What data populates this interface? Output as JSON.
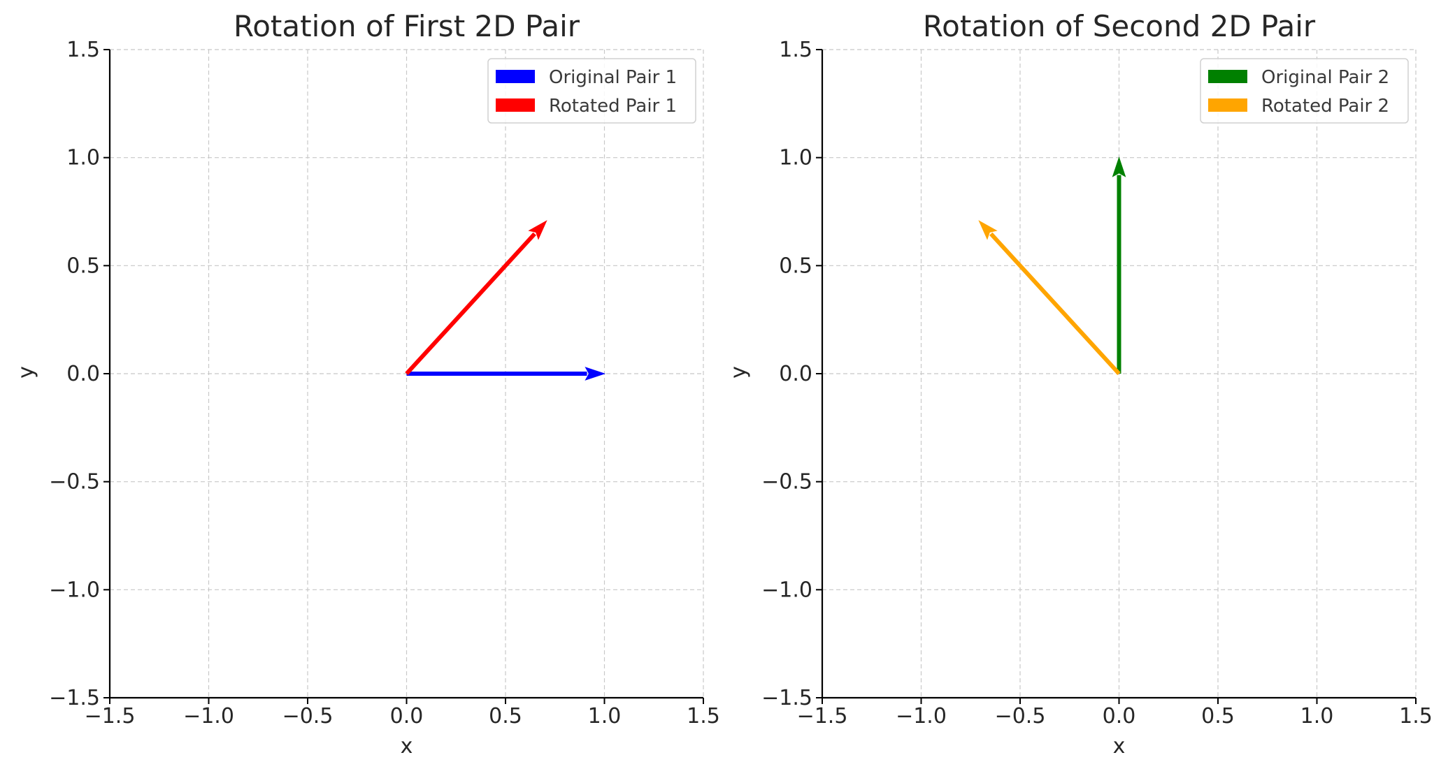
{
  "chart_data": [
    {
      "type": "quiver",
      "title": "Rotation of First 2D Pair",
      "xlabel": "x",
      "ylabel": "y",
      "xlim": [
        -1.5,
        1.5
      ],
      "ylim": [
        -1.5,
        1.5
      ],
      "xticks": [
        "−1.5",
        "−1.0",
        "−0.5",
        "0.0",
        "0.5",
        "1.0",
        "1.5"
      ],
      "yticks": [
        "−1.5",
        "−1.0",
        "−0.5",
        "0.0",
        "0.5",
        "1.0",
        "1.5"
      ],
      "grid": true,
      "legend_position": "top-right",
      "series": [
        {
          "name": "Original Pair 1",
          "color": "#0000ff",
          "start": [
            0,
            0
          ],
          "vector": [
            1.0,
            0.0
          ]
        },
        {
          "name": "Rotated Pair 1",
          "color": "#ff0000",
          "start": [
            0,
            0
          ],
          "vector": [
            0.707,
            0.707
          ]
        }
      ]
    },
    {
      "type": "quiver",
      "title": "Rotation of Second 2D Pair",
      "xlabel": "x",
      "ylabel": "y",
      "xlim": [
        -1.5,
        1.5
      ],
      "ylim": [
        -1.5,
        1.5
      ],
      "xticks": [
        "−1.5",
        "−1.0",
        "−0.5",
        "0.0",
        "0.5",
        "1.0",
        "1.5"
      ],
      "yticks": [
        "−1.5",
        "−1.0",
        "−0.5",
        "0.0",
        "0.5",
        "1.0",
        "1.5"
      ],
      "grid": true,
      "legend_position": "top-right",
      "series": [
        {
          "name": "Original Pair 2",
          "color": "#008000",
          "start": [
            0,
            0
          ],
          "vector": [
            0.0,
            1.0
          ]
        },
        {
          "name": "Rotated Pair 2",
          "color": "#ffa500",
          "start": [
            0,
            0
          ],
          "vector": [
            -0.707,
            0.707
          ]
        }
      ]
    }
  ]
}
